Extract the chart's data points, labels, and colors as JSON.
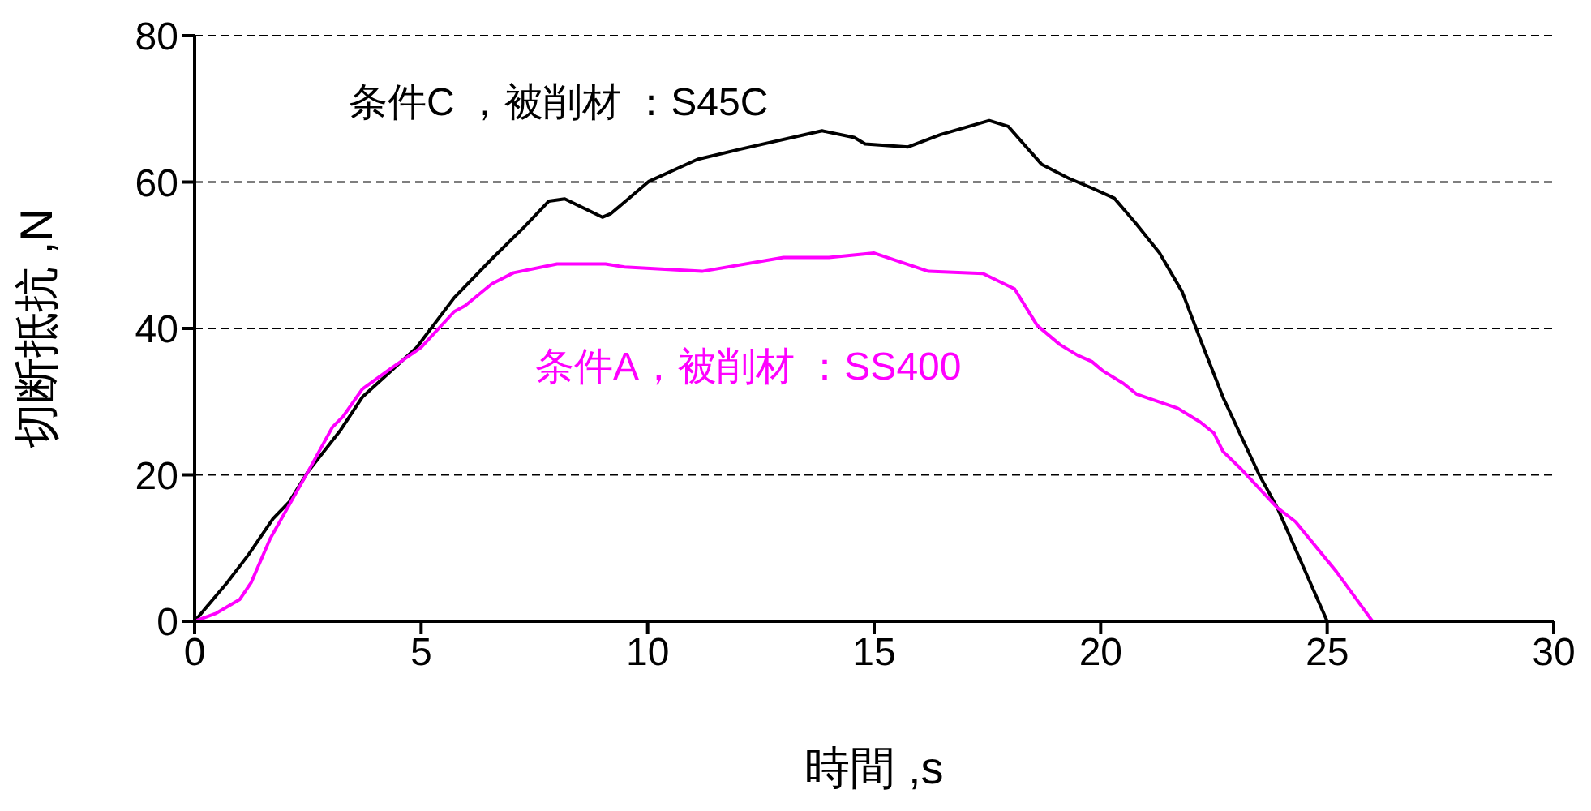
{
  "chart_data": {
    "type": "line",
    "xlabel": "時間 ,s",
    "ylabel": "切断抵抗 ,N",
    "xlim": [
      0,
      30
    ],
    "xticks": [
      0,
      5,
      10,
      15,
      20,
      25,
      30
    ],
    "ylim": [
      0,
      80
    ],
    "yticks": [
      0,
      20,
      40,
      60,
      80
    ],
    "grid": "y",
    "marker": "none",
    "line_style": "solid",
    "series": [
      {
        "name": "条件C ，被削材 ：S45C",
        "color": "#000000",
        "x": [
          0,
          0.72,
          1.19,
          1.73,
          2.09,
          2.5,
          3.22,
          3.7,
          4.3,
          4.9,
          5.73,
          6.56,
          7.28,
          7.82,
          8.17,
          9.0,
          9.19,
          10.03,
          11.1,
          12.05,
          13.85,
          14.56,
          14.8,
          15.75,
          16.47,
          17.54,
          17.96,
          18.7,
          19.3,
          19.8,
          20.3,
          20.77,
          21.3,
          21.8,
          22.2,
          22.7,
          23.5,
          23.9,
          25
        ],
        "values": [
          0,
          5.3,
          9.1,
          14,
          16.3,
          20.4,
          26.1,
          30.6,
          34,
          37.4,
          44.2,
          49.5,
          53.9,
          57.4,
          57.7,
          55.2,
          55.7,
          60.1,
          63.1,
          64.5,
          67,
          66.1,
          65.2,
          64.8,
          66.5,
          68.4,
          67.6,
          62.4,
          60.5,
          59.2,
          57.8,
          54.4,
          50.3,
          45,
          38.5,
          30.6,
          20,
          15.5,
          0
        ]
      },
      {
        "name": "条件A，被削材 ：SS400",
        "color": "#ff00ff",
        "x": [
          0,
          0.48,
          1.0,
          1.25,
          1.67,
          2.5,
          3.04,
          3.28,
          3.7,
          4.3,
          5.0,
          5.73,
          5.97,
          6.56,
          7.04,
          8.0,
          9.07,
          9.49,
          10.38,
          11.2,
          13.0,
          14.0,
          15.0,
          16.2,
          17.4,
          18.1,
          18.6,
          19.1,
          19.5,
          19.8,
          20.05,
          20.5,
          20.8,
          21.7,
          22.2,
          22.5,
          22.7,
          23.1,
          23.9,
          24.3,
          25.2,
          26
        ],
        "values": [
          0,
          1.1,
          3,
          5.3,
          11.3,
          20.4,
          26.5,
          28,
          31.7,
          34.4,
          37.4,
          42.3,
          43.1,
          46.1,
          47.6,
          48.8,
          48.8,
          48.4,
          48.1,
          47.8,
          49.7,
          49.7,
          50.3,
          47.8,
          47.5,
          45.4,
          40.4,
          37.8,
          36.3,
          35.5,
          34.2,
          32.5,
          31,
          29.1,
          27.2,
          25.7,
          23.2,
          20.8,
          15.5,
          13.6,
          6.8,
          0
        ]
      }
    ]
  }
}
